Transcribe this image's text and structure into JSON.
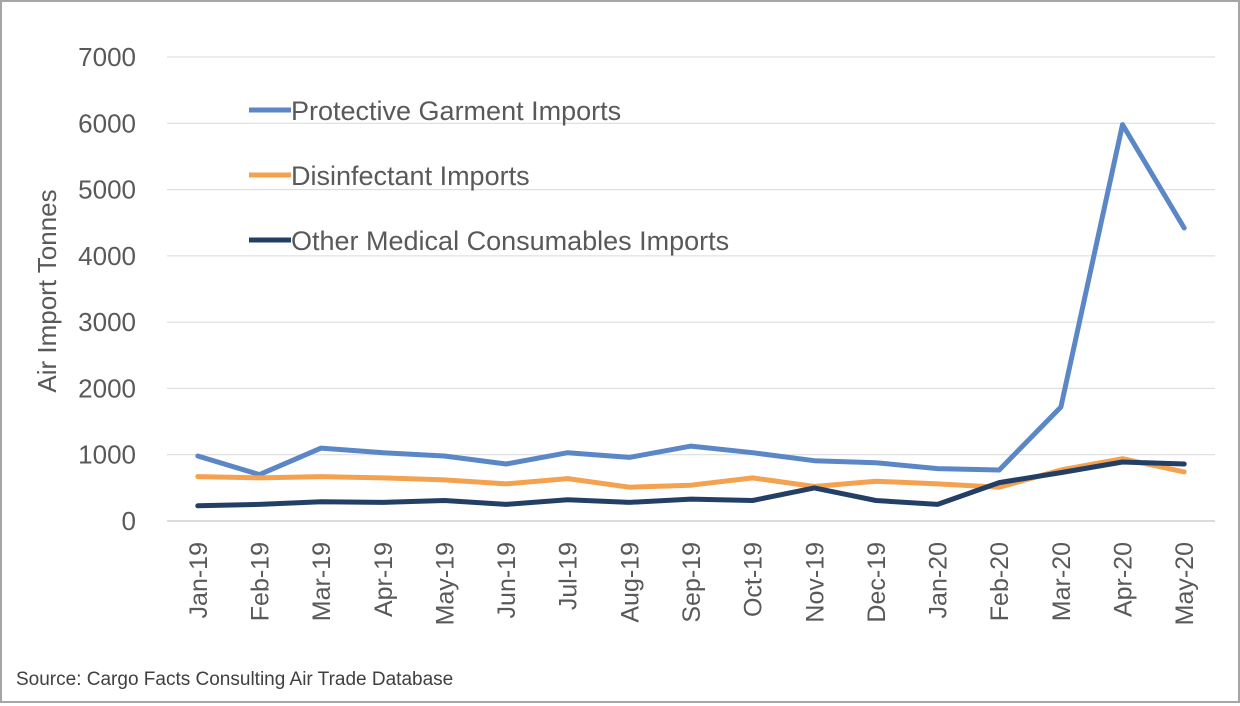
{
  "chart_data": {
    "type": "line",
    "ylabel": "Air Import Tonnes",
    "xlabel": "",
    "ylim": [
      0,
      7000
    ],
    "yticks": [
      0,
      1000,
      2000,
      3000,
      4000,
      5000,
      6000,
      7000
    ],
    "grid": true,
    "legend_position": "top-left",
    "categories": [
      "Jan-19",
      "Feb-19",
      "Mar-19",
      "Apr-19",
      "May-19",
      "Jun-19",
      "Jul-19",
      "Aug-19",
      "Sep-19",
      "Oct-19",
      "Nov-19",
      "Dec-19",
      "Jan-20",
      "Feb-20",
      "Mar-20",
      "Apr-20",
      "May-20"
    ],
    "series": [
      {
        "name": "Protective Garment Imports",
        "color": "#5b87c7",
        "values": [
          980,
          700,
          1100,
          1030,
          980,
          860,
          1030,
          960,
          1130,
          1030,
          910,
          880,
          790,
          770,
          1720,
          5980,
          4420
        ]
      },
      {
        "name": "Disinfectant Imports",
        "color": "#f4a150",
        "values": [
          670,
          650,
          670,
          650,
          620,
          560,
          640,
          510,
          540,
          650,
          520,
          600,
          560,
          510,
          770,
          940,
          740
        ]
      },
      {
        "name": "Other Medical Consumables Imports",
        "color": "#243f66",
        "values": [
          230,
          250,
          290,
          280,
          310,
          250,
          320,
          280,
          330,
          310,
          500,
          310,
          250,
          580,
          730,
          890,
          860
        ]
      }
    ]
  },
  "source": "Source: Cargo Facts Consulting Air Trade Database"
}
